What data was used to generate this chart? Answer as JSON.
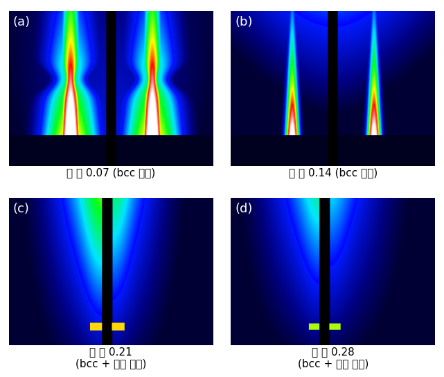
{
  "labels": [
    [
      "(a)",
      "의 비 0.07 (bcc 구조)"
    ],
    [
      "(b)",
      "의 비 0.14 (bcc 구조)"
    ],
    [
      "(c)",
      "의 비 0.21\n(bcc + 랜덤 구조)"
    ],
    [
      "(d)",
      "의 비 0.28\n(bcc + 랜덤 구조)"
    ]
  ],
  "labels_korean": [
    [
      "(a)",
      "물 비 0.07 (bcc 구조)"
    ],
    [
      "(b)",
      "물 비 0.14 (bcc 구조)"
    ],
    [
      "(c)",
      "물 비 0.21\n(bcc + 랜덤 구조)"
    ],
    [
      "(d)",
      "물 비 0.28\n(bcc + 랜덤 구조)"
    ]
  ],
  "label_fontsize": 13,
  "caption_fontsize": 11,
  "fig_bg": "#ffffff"
}
